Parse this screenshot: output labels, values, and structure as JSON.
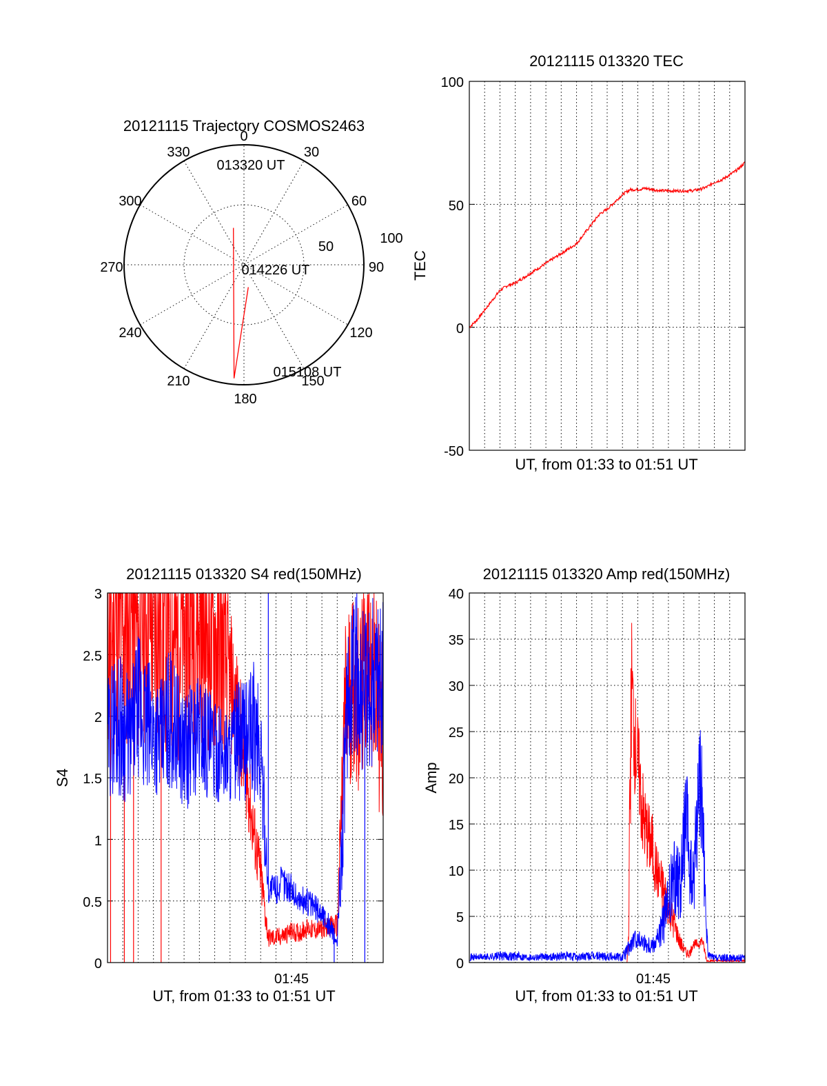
{
  "colors": {
    "red": "#ff0000",
    "blue": "#0000ff",
    "axis": "#000000",
    "background": "#ffffff"
  },
  "chart_data": [
    {
      "id": "trajectory",
      "type": "polar",
      "title": "20121115 Trajectory COSMOS2463",
      "angle_labels": [
        "0",
        "30",
        "60",
        "90",
        "120",
        "150",
        "180",
        "210",
        "240",
        "270",
        "300",
        "330"
      ],
      "radial_labels": [
        "50",
        "100"
      ],
      "rlim": [
        0,
        100
      ],
      "grid": true,
      "points": [
        {
          "label": "013320 UT",
          "azimuth": 344,
          "elevation": 32
        },
        {
          "label": "014226 UT",
          "azimuth": 185,
          "elevation": 95
        },
        {
          "label": "015108 UT",
          "azimuth": 169,
          "elevation": 19
        }
      ]
    },
    {
      "id": "tec",
      "type": "line",
      "title": "20121115 013320 TEC",
      "xlabel": "UT, from 01:33 to 01:51 UT",
      "ylabel": "TEC",
      "ylim": [
        -50,
        100
      ],
      "yticks": [
        -50,
        0,
        50,
        100
      ],
      "xlim": [
        0,
        18
      ],
      "grid": true,
      "series": [
        {
          "color": "red",
          "x": [
            0,
            0.5,
            1.0,
            1.5,
            2.0,
            2.5,
            3.0,
            3.5,
            4.0,
            4.5,
            5.0,
            5.5,
            6.0,
            6.5,
            7.0,
            7.5,
            8.0,
            8.5,
            9.0,
            9.5,
            10.0,
            10.5,
            11.0,
            11.5,
            12.0,
            12.5,
            13.0,
            13.5,
            14.0,
            14.5,
            15.0,
            15.5,
            16.0,
            16.5,
            17.0,
            17.5,
            18.0
          ],
          "values": [
            0,
            3,
            7,
            11,
            15,
            17,
            18,
            20,
            22,
            24,
            26,
            28,
            30,
            32,
            34,
            38,
            42,
            46,
            48,
            51,
            54,
            56,
            56,
            56.5,
            56,
            55.5,
            55.5,
            55.5,
            55.5,
            55.5,
            56,
            57,
            59,
            60,
            62,
            64,
            67
          ]
        }
      ]
    },
    {
      "id": "s4",
      "type": "line",
      "title": "20121115 013320 S4 red(150MHz)",
      "xlabel": "UT, from 01:33 to 01:51 UT",
      "ylabel": "S4",
      "ylim": [
        0,
        3
      ],
      "yticks": [
        "0",
        "0.5",
        "1",
        "1.5",
        "2",
        "2.5",
        "3"
      ],
      "xlim": [
        0,
        18
      ],
      "xticks": [
        {
          "x": 12,
          "label": "01:45"
        }
      ],
      "grid": true,
      "series": [
        {
          "color": "red",
          "x": [
            0,
            0.5,
            1.0,
            1.5,
            2.0,
            2.5,
            3.0,
            3.5,
            4.0,
            4.5,
            5.0,
            5.5,
            6.0,
            6.5,
            7.0,
            7.5,
            8.0,
            8.5,
            9.0,
            9.5,
            10.0,
            10.5,
            11.0,
            11.5,
            12.0,
            12.5,
            13.0,
            13.5,
            14.0,
            14.5,
            15.0,
            15.5,
            16.0,
            16.5,
            17.0,
            17.5,
            18.0
          ],
          "values": [
            2.6,
            2.8,
            2.7,
            2.9,
            2.6,
            2.8,
            2.9,
            2.7,
            2.8,
            2.6,
            2.7,
            2.9,
            2.8,
            2.7,
            2.6,
            2.5,
            2.3,
            2.0,
            1.6,
            1.1,
            0.7,
            0.2,
            0.2,
            0.22,
            0.25,
            0.24,
            0.28,
            0.26,
            0.27,
            0.3,
            0.3,
            2.0,
            2.3,
            2.1,
            2.5,
            2.2,
            1.8
          ],
          "amplitude": [
            1.0,
            1.2,
            1.0,
            1.2,
            1.0,
            1.0,
            1.2,
            1.0,
            1.2,
            1.0,
            1.0,
            1.2,
            1.0,
            1.0,
            1.0,
            0.8,
            0.6,
            0.5,
            0.4,
            0.3,
            0.25,
            0.08,
            0.08,
            0.08,
            0.08,
            0.08,
            0.08,
            0.08,
            0.08,
            0.08,
            0.1,
            0.8,
            0.8,
            0.8,
            0.8,
            0.8,
            0.8
          ],
          "spikes": [
            {
              "x": 0.2,
              "value": 0
            },
            {
              "x": 1.1,
              "value": 0
            },
            {
              "x": 1.7,
              "value": 0
            },
            {
              "x": 3.5,
              "value": 0
            }
          ]
        },
        {
          "color": "blue",
          "x": [
            0,
            0.5,
            1.0,
            1.5,
            2.0,
            2.5,
            3.0,
            3.5,
            4.0,
            4.5,
            5.0,
            5.5,
            6.0,
            6.5,
            7.0,
            7.5,
            8.0,
            8.5,
            9.0,
            9.5,
            10.0,
            10.5,
            11.0,
            11.5,
            12.0,
            12.5,
            13.0,
            13.5,
            14.0,
            14.5,
            15.0,
            15.5,
            16.0,
            16.5,
            17.0,
            17.5,
            18.0
          ],
          "values": [
            1.8,
            2.0,
            1.9,
            1.8,
            2.1,
            1.9,
            1.9,
            1.8,
            2.0,
            1.9,
            1.7,
            1.8,
            1.9,
            1.8,
            1.7,
            1.7,
            1.7,
            1.8,
            1.8,
            1.9,
            1.7,
            0.6,
            0.6,
            0.65,
            0.6,
            0.5,
            0.5,
            0.45,
            0.4,
            0.3,
            0.15,
            1.6,
            2.4,
            2.3,
            2.1,
            2.4,
            2.3
          ],
          "amplitude": [
            0.5,
            0.6,
            0.6,
            0.5,
            0.6,
            0.6,
            0.5,
            0.5,
            0.6,
            0.5,
            0.5,
            0.5,
            0.5,
            0.5,
            0.4,
            0.4,
            0.4,
            0.5,
            0.5,
            0.6,
            0.6,
            0.12,
            0.15,
            0.15,
            0.12,
            0.12,
            0.12,
            0.12,
            0.1,
            0.1,
            0.05,
            0.7,
            0.7,
            0.7,
            0.7,
            0.7,
            0.7
          ],
          "spikes": [
            {
              "x": 10.5,
              "value": 3
            },
            {
              "x": 14.8,
              "value": 0
            },
            {
              "x": 16.8,
              "value": 0
            }
          ]
        }
      ]
    },
    {
      "id": "amp",
      "type": "line",
      "title": "20121115 013320 Amp red(150MHz)",
      "xlabel": "UT, from 01:33 to 01:51 UT",
      "ylabel": "Amp",
      "ylim": [
        0,
        40
      ],
      "yticks": [
        0,
        5,
        10,
        15,
        20,
        25,
        30,
        35,
        40
      ],
      "xlim": [
        0,
        18
      ],
      "xticks": [
        {
          "x": 12,
          "label": "01:45"
        }
      ],
      "grid": true,
      "series": [
        {
          "color": "red",
          "x": [
            0,
            10.3,
            10.4,
            10.5,
            10.6,
            10.8,
            11.0,
            11.2,
            11.4,
            11.6,
            11.8,
            12.0,
            12.2,
            12.4,
            12.6,
            12.8,
            13.0,
            13.2,
            13.4,
            13.6,
            13.8,
            14.0,
            14.2,
            14.4,
            14.6,
            14.8,
            15.0,
            15.2,
            15.4,
            15.5,
            18.0
          ],
          "values": [
            0,
            0,
            3,
            20,
            30,
            24,
            22,
            18,
            15,
            14,
            13,
            12,
            10,
            9,
            8,
            7,
            6,
            5,
            4,
            3,
            2,
            1.5,
            1,
            1,
            2,
            2,
            2,
            2.5,
            1,
            0.2,
            0.2
          ],
          "amplitude": [
            0,
            0,
            1,
            8,
            8,
            6,
            5,
            5,
            5,
            4,
            4,
            4,
            3,
            3,
            3,
            3,
            2,
            2,
            2,
            1,
            1,
            0.5,
            0.5,
            0.5,
            0.5,
            0.5,
            0.5,
            0.5,
            0.5,
            0.1,
            0.1
          ]
        },
        {
          "color": "blue",
          "x": [
            0,
            1,
            2,
            3,
            4,
            5,
            6,
            7,
            8,
            9,
            10,
            10.4,
            10.8,
            11.2,
            11.6,
            12.0,
            12.4,
            12.8,
            13.2,
            13.6,
            13.8,
            14.0,
            14.2,
            14.4,
            14.6,
            14.8,
            15.0,
            15.2,
            15.4,
            15.6,
            16,
            17,
            18
          ],
          "values": [
            0.6,
            0.6,
            0.7,
            0.7,
            0.6,
            0.6,
            0.7,
            0.6,
            0.7,
            0.7,
            0.6,
            1.5,
            2.5,
            2.5,
            2.0,
            2.0,
            3.0,
            5,
            8,
            10,
            8,
            13,
            15,
            10,
            8,
            14,
            20,
            18,
            6,
            0.8,
            0.5,
            0.5,
            0.5
          ],
          "amplitude": [
            0.4,
            0.4,
            0.5,
            0.5,
            0.4,
            0.4,
            0.5,
            0.5,
            0.5,
            0.5,
            0.5,
            1,
            1,
            1,
            1,
            1,
            1.5,
            3,
            4,
            5,
            4,
            6,
            6,
            5,
            4,
            6,
            7,
            6,
            3,
            0.4,
            0.4,
            0.4,
            0.4
          ]
        }
      ]
    }
  ]
}
